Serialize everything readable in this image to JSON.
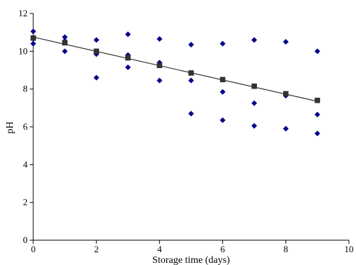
{
  "chart_data": {
    "type": "scatter",
    "xlabel": "Storage time (days)",
    "ylabel": "pH",
    "xlim": [
      0,
      10
    ],
    "ylim": [
      0,
      12
    ],
    "xticks": [
      0,
      2,
      4,
      6,
      8,
      10
    ],
    "yticks": [
      0,
      2,
      4,
      6,
      8,
      10,
      12
    ],
    "grid": false,
    "legend": "none",
    "series": [
      {
        "marker": "diamond",
        "color": "#00008b",
        "points": [
          [
            0,
            11.05
          ],
          [
            0,
            10.4
          ],
          [
            0,
            10.65
          ],
          [
            1,
            10.75
          ],
          [
            1,
            10.55
          ],
          [
            1,
            10.0
          ],
          [
            2,
            10.6
          ],
          [
            2,
            9.85
          ],
          [
            2,
            8.6
          ],
          [
            3,
            10.9
          ],
          [
            3,
            9.8
          ],
          [
            3,
            9.15
          ],
          [
            4,
            10.65
          ],
          [
            4,
            9.4
          ],
          [
            4,
            8.45
          ],
          [
            5,
            10.35
          ],
          [
            5,
            8.45
          ],
          [
            5,
            6.7
          ],
          [
            6,
            10.4
          ],
          [
            6,
            7.85
          ],
          [
            6,
            6.35
          ],
          [
            7,
            10.6
          ],
          [
            7,
            7.25
          ],
          [
            7,
            6.05
          ],
          [
            8,
            10.5
          ],
          [
            8,
            7.65
          ],
          [
            8,
            5.9
          ],
          [
            9,
            10.0
          ],
          [
            9,
            6.65
          ],
          [
            9,
            5.65
          ]
        ]
      },
      {
        "marker": "square",
        "color": "#333333",
        "points": [
          [
            0,
            10.7
          ],
          [
            1,
            10.45
          ],
          [
            2,
            10.0
          ],
          [
            3,
            9.65
          ],
          [
            4,
            9.25
          ],
          [
            5,
            8.85
          ],
          [
            6,
            8.5
          ],
          [
            7,
            8.15
          ],
          [
            8,
            7.75
          ],
          [
            9,
            7.4
          ]
        ]
      }
    ],
    "trendline": {
      "x": [
        0,
        9
      ],
      "y": [
        10.75,
        7.35
      ],
      "color": "#333333"
    }
  }
}
